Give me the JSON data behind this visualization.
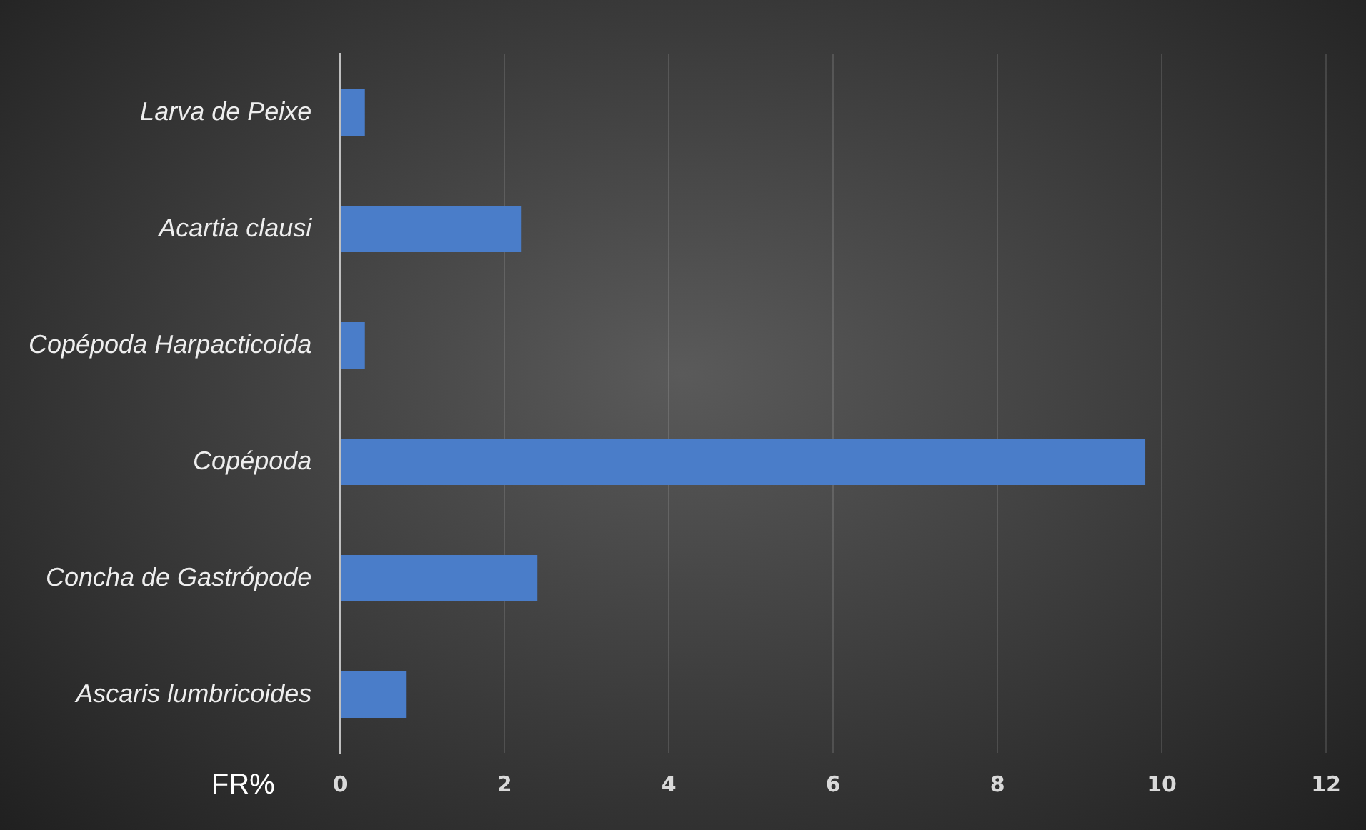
{
  "chart_data": {
    "type": "bar",
    "orientation": "horizontal",
    "xlabel": "FR%",
    "categories": [
      "Larva de Peixe",
      "Acartia clausi",
      "Copépoda Harpacticoida",
      "Copépoda",
      "Concha de Gastrópode",
      "Ascaris lumbricoides"
    ],
    "values": [
      0.3,
      2.2,
      0.3,
      9.8,
      2.4,
      0.8
    ],
    "color": "#4a7dc9",
    "xlim": [
      0,
      12
    ],
    "xticks": [
      0,
      2,
      4,
      6,
      8,
      10,
      12
    ],
    "grid": "x"
  }
}
